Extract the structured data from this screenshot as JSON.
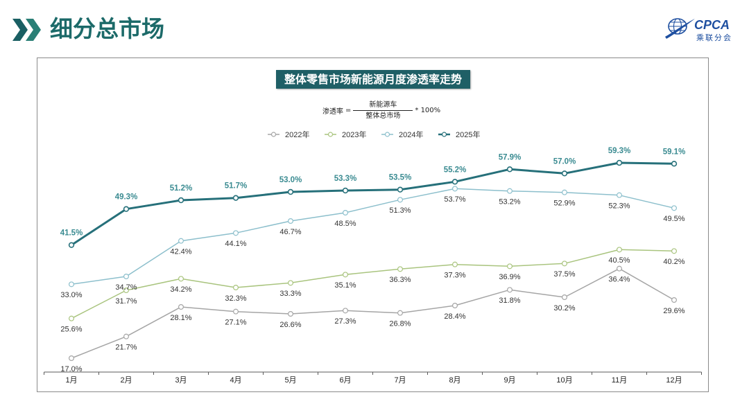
{
  "header": {
    "title": "细分总市场",
    "icon": "double-chevron-right-icon",
    "accent_color": "#1c6a69"
  },
  "logo": {
    "text": "CPCA",
    "subtext": "乘联分会",
    "icon": "globe-swoosh-icon",
    "color": "#1e4fa0"
  },
  "chart_data": {
    "type": "line",
    "title": "整体零售市场新能源月度渗透率走势",
    "title_background": "#1f5f66",
    "formula": {
      "lhs": "渗透率",
      "equals": "=",
      "numerator": "新能源车",
      "denominator": "整体总市场",
      "multiplier": "* 100%"
    },
    "categories": [
      "1月",
      "2月",
      "3月",
      "4月",
      "5月",
      "6月",
      "7月",
      "8月",
      "9月",
      "10月",
      "11月",
      "12月"
    ],
    "unit": "%",
    "ylim": [
      14,
      80
    ],
    "grid": false,
    "legend_position": "top-center",
    "axis_color": "#595959",
    "series": [
      {
        "name": "2022年",
        "color": "#a5a5a5",
        "label_color": "#333333",
        "values": [
          17.0,
          21.7,
          28.1,
          27.1,
          26.6,
          27.3,
          26.8,
          28.4,
          31.8,
          30.2,
          36.4,
          29.6
        ]
      },
      {
        "name": "2023年",
        "color": "#a9c47e",
        "label_color": "#333333",
        "values": [
          25.6,
          31.7,
          34.2,
          32.3,
          33.3,
          35.1,
          36.3,
          37.3,
          36.9,
          37.5,
          40.5,
          40.2
        ]
      },
      {
        "name": "2024年",
        "color": "#8cbfcc",
        "label_color": "#333333",
        "values": [
          33.0,
          34.7,
          42.4,
          44.1,
          46.7,
          48.5,
          51.3,
          53.7,
          53.2,
          52.9,
          52.3,
          49.5
        ]
      },
      {
        "name": "2025年",
        "color": "#26707a",
        "label_color": "#3a8b91",
        "values": [
          41.5,
          49.3,
          51.2,
          51.7,
          53.0,
          53.3,
          53.5,
          55.2,
          57.9,
          57.0,
          59.3,
          59.1
        ]
      }
    ]
  }
}
